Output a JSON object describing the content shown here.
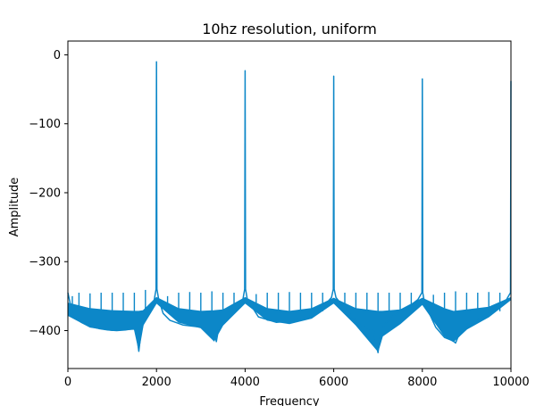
{
  "chart_data": {
    "type": "line",
    "title": "10hz resolution, uniform",
    "xlabel": "Frequency",
    "ylabel": "Amplitude",
    "xlim": [
      0,
      10000
    ],
    "ylim": [
      -455,
      20
    ],
    "xticks": [
      0,
      2000,
      4000,
      6000,
      8000,
      10000
    ],
    "xtick_labels": [
      "0",
      "2000",
      "4000",
      "6000",
      "8000",
      "10000"
    ],
    "yticks": [
      0,
      -100,
      -200,
      -300,
      -400
    ],
    "ytick_labels": [
      "0",
      "−100",
      "−200",
      "−300",
      "−400"
    ],
    "grid": false,
    "legend": "none",
    "color": "#0c87c8",
    "series": [
      {
        "x": [
          0,
          100,
          300,
          500,
          700,
          900,
          1100,
          1300,
          1500,
          1550,
          1600,
          1650,
          1700,
          1850,
          1950,
          1990,
          2000,
          2010,
          2050,
          2150,
          2300,
          2600,
          3000,
          3300,
          3350,
          3400,
          3600,
          3800,
          3950,
          3990,
          4000,
          4010,
          4050,
          4300,
          4700,
          5100,
          5500,
          5800,
          5950,
          5990,
          6000,
          6010,
          6050,
          6300,
          6600,
          6900,
          7000,
          7050,
          7100,
          7300,
          7600,
          7900,
          7990,
          8000,
          8010,
          8050,
          8300,
          8500,
          8700,
          8750,
          8800,
          9000,
          9300,
          9600,
          9900,
          9990,
          10000
        ],
        "y": [
          -345,
          -375,
          -388,
          -394,
          -397,
          -399,
          -400,
          -399,
          -397,
          -405,
          -430,
          -403,
          -390,
          -370,
          -355,
          -340,
          -10,
          -340,
          -355,
          -375,
          -385,
          -392,
          -395,
          -400,
          -416,
          -398,
          -385,
          -370,
          -355,
          -340,
          -23,
          -340,
          -355,
          -380,
          -388,
          -386,
          -378,
          -363,
          -352,
          -340,
          -31,
          -340,
          -352,
          -372,
          -392,
          -400,
          -432,
          -402,
          -395,
          -380,
          -370,
          -355,
          -345,
          -35,
          -345,
          -360,
          -395,
          -410,
          -415,
          -418,
          -410,
          -395,
          -383,
          -370,
          -355,
          -345,
          -38
        ]
      }
    ],
    "spikes": {
      "x": [
        100,
        250,
        500,
        750,
        1000,
        1250,
        1500,
        1750,
        2250,
        2500,
        2750,
        3000,
        3250,
        3500,
        3750,
        4250,
        4500,
        4750,
        5000,
        5250,
        5500,
        5750,
        6250,
        6500,
        6750,
        7000,
        7250,
        7500,
        7750,
        8250,
        8500,
        8750,
        9000,
        9250,
        9500,
        9750
      ],
      "y": [
        -350,
        -345,
        -346,
        -345,
        -345,
        -345,
        -345,
        -341,
        -350,
        -345,
        -344,
        -345,
        -343,
        -345,
        -345,
        -347,
        -345,
        -345,
        -344,
        -345,
        -345,
        -345,
        -345,
        -345,
        -345,
        -345,
        -345,
        -345,
        -345,
        -348,
        -345,
        -343,
        -345,
        -345,
        -344,
        -345
      ]
    },
    "noise_band": {
      "x": [
        0,
        500,
        1000,
        1500,
        1600,
        1700,
        2000,
        2500,
        3000,
        3300,
        3500,
        4000,
        4500,
        5000,
        5500,
        6000,
        6500,
        7000,
        7100,
        7500,
        8000,
        8500,
        8700,
        9000,
        9500,
        10000
      ],
      "upper": [
        -360,
        -368,
        -371,
        -372,
        -372,
        -371,
        -352,
        -368,
        -372,
        -371,
        -370,
        -352,
        -368,
        -372,
        -368,
        -353,
        -368,
        -372,
        -372,
        -370,
        -353,
        -368,
        -372,
        -370,
        -366,
        -352
      ],
      "lower": [
        -378,
        -395,
        -400,
        -398,
        -428,
        -392,
        -360,
        -388,
        -396,
        -415,
        -392,
        -360,
        -385,
        -390,
        -382,
        -360,
        -392,
        -430,
        -408,
        -390,
        -362,
        -408,
        -416,
        -398,
        -380,
        -355
      ]
    }
  }
}
